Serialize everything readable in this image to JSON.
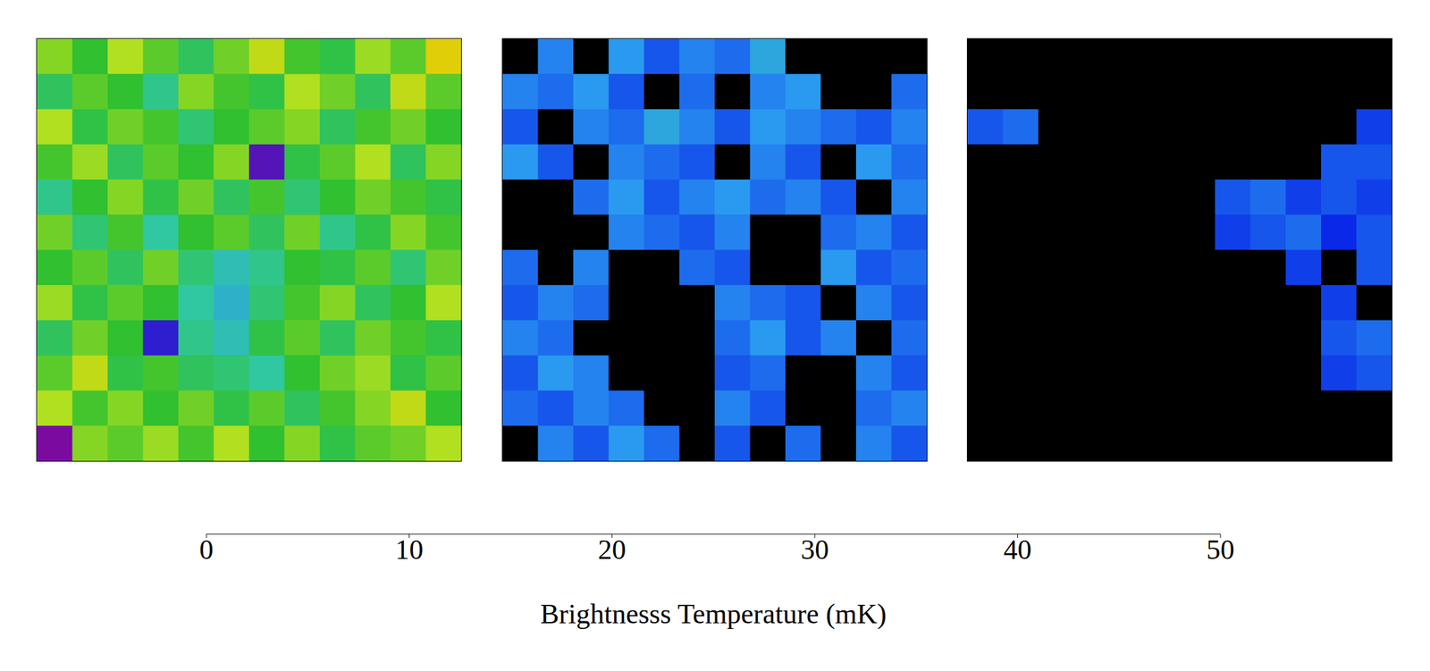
{
  "chart_data": {
    "type": "heatmap",
    "tick_labels": false,
    "panels": [
      {
        "cells": [
          [
            28,
            24,
            30,
            26,
            22,
            27,
            31,
            25,
            23,
            29,
            26,
            33
          ],
          [
            22,
            26,
            24,
            20,
            28,
            25,
            23,
            30,
            27,
            22,
            31,
            26
          ],
          [
            30,
            23,
            27,
            25,
            21,
            24,
            26,
            28,
            22,
            25,
            27,
            24
          ],
          [
            25,
            29,
            22,
            26,
            24,
            28,
            6,
            23,
            26,
            30,
            22,
            28
          ],
          [
            20,
            24,
            28,
            23,
            27,
            22,
            25,
            21,
            24,
            27,
            25,
            23
          ],
          [
            27,
            21,
            25,
            19,
            24,
            26,
            22,
            27,
            20,
            23,
            28,
            25
          ],
          [
            24,
            26,
            22,
            27,
            21,
            18,
            20,
            24,
            23,
            26,
            21,
            27
          ],
          [
            29,
            23,
            26,
            24,
            19,
            17,
            21,
            25,
            28,
            22,
            24,
            30
          ],
          [
            22,
            27,
            24,
            8,
            20,
            18,
            23,
            26,
            22,
            27,
            25,
            23
          ],
          [
            26,
            31,
            23,
            25,
            22,
            21,
            19,
            24,
            27,
            29,
            23,
            26
          ],
          [
            30,
            25,
            28,
            24,
            27,
            23,
            26,
            22,
            25,
            28,
            31,
            24
          ],
          [
            4,
            28,
            26,
            29,
            25,
            30,
            24,
            28,
            23,
            26,
            27,
            30
          ]
        ]
      },
      {
        "cells": [
          [
            0,
            14,
            0,
            15,
            12,
            14,
            13,
            16,
            0,
            0,
            0,
            0
          ],
          [
            14,
            13,
            15,
            12,
            0,
            13,
            0,
            14,
            15,
            0,
            0,
            13
          ],
          [
            12,
            0,
            14,
            13,
            16,
            14,
            12,
            15,
            14,
            13,
            12,
            14
          ],
          [
            15,
            12,
            0,
            14,
            13,
            12,
            0,
            14,
            12,
            0,
            15,
            13
          ],
          [
            0,
            0,
            13,
            15,
            12,
            14,
            15,
            13,
            14,
            12,
            0,
            14
          ],
          [
            0,
            0,
            0,
            14,
            13,
            12,
            14,
            0,
            0,
            13,
            14,
            12
          ],
          [
            13,
            0,
            14,
            0,
            0,
            13,
            12,
            0,
            0,
            15,
            12,
            13
          ],
          [
            12,
            14,
            13,
            0,
            0,
            0,
            14,
            13,
            12,
            0,
            14,
            12
          ],
          [
            14,
            13,
            0,
            0,
            0,
            0,
            13,
            15,
            12,
            14,
            0,
            13
          ],
          [
            12,
            15,
            14,
            0,
            0,
            0,
            12,
            13,
            0,
            0,
            14,
            12
          ],
          [
            13,
            12,
            14,
            13,
            0,
            0,
            14,
            12,
            0,
            0,
            13,
            14
          ],
          [
            0,
            14,
            12,
            15,
            13,
            0,
            12,
            0,
            13,
            0,
            14,
            12
          ]
        ]
      },
      {
        "cells": [
          [
            0,
            0,
            0,
            0,
            0,
            0,
            0,
            0,
            0,
            0,
            0,
            0
          ],
          [
            0,
            0,
            0,
            0,
            0,
            0,
            0,
            0,
            0,
            0,
            0,
            0
          ],
          [
            12,
            13,
            0,
            0,
            0,
            0,
            0,
            0,
            0,
            0,
            0,
            11
          ],
          [
            0,
            0,
            0,
            0,
            0,
            0,
            0,
            0,
            0,
            0,
            12,
            12
          ],
          [
            0,
            0,
            0,
            0,
            0,
            0,
            0,
            12,
            13,
            11,
            12,
            11
          ],
          [
            0,
            0,
            0,
            0,
            0,
            0,
            0,
            11,
            12,
            13,
            10,
            12
          ],
          [
            0,
            0,
            0,
            0,
            0,
            0,
            0,
            0,
            0,
            11,
            0,
            12
          ],
          [
            0,
            0,
            0,
            0,
            0,
            0,
            0,
            0,
            0,
            0,
            11,
            0
          ],
          [
            0,
            0,
            0,
            0,
            0,
            0,
            0,
            0,
            0,
            0,
            12,
            13
          ],
          [
            0,
            0,
            0,
            0,
            0,
            0,
            0,
            0,
            0,
            0,
            11,
            12
          ],
          [
            0,
            0,
            0,
            0,
            0,
            0,
            0,
            0,
            0,
            0,
            0,
            0
          ],
          [
            0,
            0,
            0,
            0,
            0,
            0,
            0,
            0,
            0,
            0,
            0,
            0
          ]
        ]
      }
    ],
    "colorbar": {
      "lim": [
        0,
        50
      ],
      "ticks": [
        0,
        10,
        20,
        30,
        40,
        50
      ],
      "label": "Brightnesss Temperature (mK)"
    }
  }
}
